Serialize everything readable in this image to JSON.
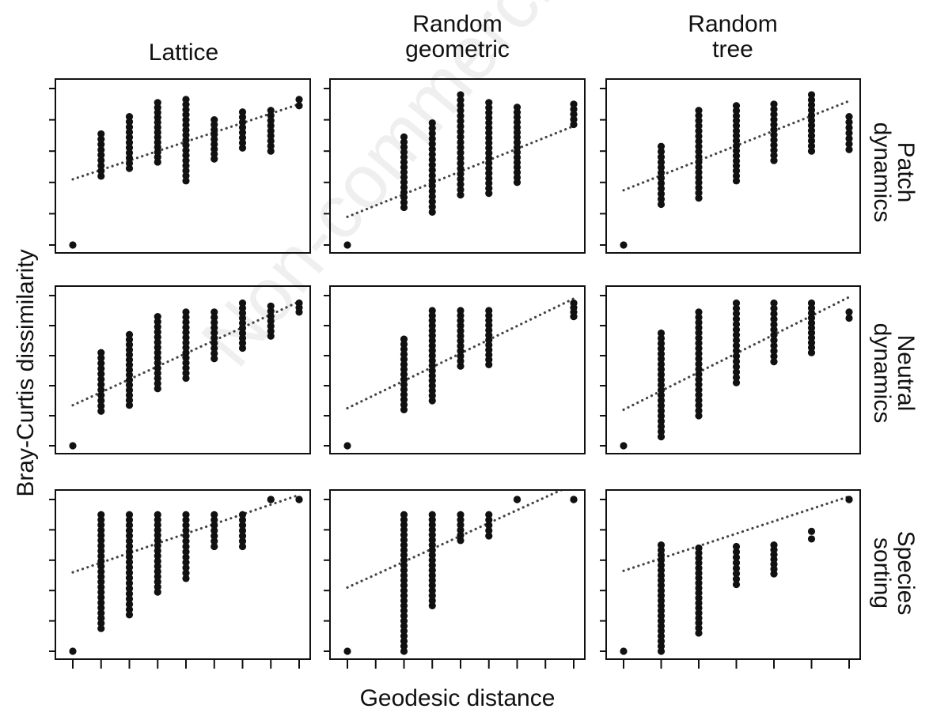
{
  "watermark": "Non-commercial use",
  "chart_data": {
    "type": "scatter",
    "xlabel": "Geodesic distance",
    "ylabel": "Bray-Curtis dissimilarity",
    "columns": [
      "Lattice",
      "Random\ngeometric",
      "Random\ntree"
    ],
    "rows": [
      "Patch\ndynamics",
      "Neutral\ndynamics",
      "Species\nsorting"
    ],
    "tick_labels_shown": false,
    "trend_line_style": "dotted",
    "panels": [
      {
        "row": "Patch dynamics",
        "column": "Lattice",
        "xlim": [
          0,
          8
        ],
        "ylim": [
          0,
          1
        ],
        "x_values": [
          1,
          2,
          3,
          4,
          5,
          6,
          7,
          8
        ],
        "point_ranges": [
          [
            0.44,
            0.71
          ],
          [
            0.49,
            0.82
          ],
          [
            0.53,
            0.91
          ],
          [
            0.41,
            0.93
          ],
          [
            0.55,
            0.8
          ],
          [
            0.62,
            0.85
          ],
          [
            0.6,
            0.86
          ],
          [
            0.89,
            0.93
          ]
        ],
        "origin_point": [
          0,
          0
        ],
        "trend": [
          [
            0,
            0.42
          ],
          [
            8,
            0.9
          ]
        ]
      },
      {
        "row": "Patch dynamics",
        "column": "Random geometric",
        "xlim": [
          0,
          8
        ],
        "ylim": [
          0,
          1
        ],
        "x_values": [
          2,
          3,
          4,
          5,
          6,
          8
        ],
        "point_ranges": [
          [
            0.24,
            0.69
          ],
          [
            0.21,
            0.78
          ],
          [
            0.32,
            0.96
          ],
          [
            0.33,
            0.91
          ],
          [
            0.4,
            0.88
          ],
          [
            0.77,
            0.9
          ]
        ],
        "origin_point": [
          0,
          0
        ],
        "trend": [
          [
            0,
            0.18
          ],
          [
            8,
            0.76
          ]
        ]
      },
      {
        "row": "Patch dynamics",
        "column": "Random tree",
        "xlim": [
          0,
          6
        ],
        "ylim": [
          0,
          1
        ],
        "x_values": [
          1,
          2,
          3,
          4,
          5,
          6
        ],
        "point_ranges": [
          [
            0.26,
            0.63
          ],
          [
            0.3,
            0.86
          ],
          [
            0.41,
            0.89
          ],
          [
            0.54,
            0.9
          ],
          [
            0.6,
            0.96
          ],
          [
            0.61,
            0.82
          ]
        ],
        "origin_point": [
          0,
          0
        ],
        "trend": [
          [
            0,
            0.35
          ],
          [
            6,
            0.92
          ]
        ]
      },
      {
        "row": "Neutral dynamics",
        "column": "Lattice",
        "xlim": [
          0,
          8
        ],
        "ylim": [
          0,
          1
        ],
        "x_values": [
          1,
          2,
          3,
          4,
          5,
          6,
          7,
          8
        ],
        "point_ranges": [
          [
            0.23,
            0.62
          ],
          [
            0.27,
            0.74
          ],
          [
            0.38,
            0.86
          ],
          [
            0.45,
            0.89
          ],
          [
            0.58,
            0.89
          ],
          [
            0.65,
            0.95
          ],
          [
            0.73,
            0.93
          ],
          [
            0.89,
            0.95
          ]
        ],
        "origin_point": [
          0,
          0
        ],
        "trend": [
          [
            0,
            0.27
          ],
          [
            8,
            0.96
          ]
        ]
      },
      {
        "row": "Neutral dynamics",
        "column": "Random geometric",
        "xlim": [
          0,
          8
        ],
        "ylim": [
          0,
          1
        ],
        "x_values": [
          2,
          3,
          4,
          5,
          8
        ],
        "point_ranges": [
          [
            0.24,
            0.71
          ],
          [
            0.3,
            0.9
          ],
          [
            0.53,
            0.9
          ],
          [
            0.54,
            0.9
          ],
          [
            0.86,
            0.95
          ]
        ],
        "origin_point": [
          0,
          0
        ],
        "trend": [
          [
            0,
            0.25
          ],
          [
            8,
            0.98
          ]
        ]
      },
      {
        "row": "Neutral dynamics",
        "column": "Random tree",
        "xlim": [
          0,
          6
        ],
        "ylim": [
          0,
          1
        ],
        "x_values": [
          1,
          2,
          3,
          4,
          5,
          6
        ],
        "point_ranges": [
          [
            0.06,
            0.75
          ],
          [
            0.2,
            0.89
          ],
          [
            0.42,
            0.95
          ],
          [
            0.56,
            0.95
          ],
          [
            0.62,
            0.95
          ],
          [
            0.85,
            0.89
          ]
        ],
        "origin_point": [
          0,
          0
        ],
        "trend": [
          [
            0,
            0.24
          ],
          [
            6,
            0.99
          ]
        ]
      },
      {
        "row": "Species sorting",
        "column": "Lattice",
        "xlim": [
          0,
          8
        ],
        "ylim": [
          0,
          1
        ],
        "x_values": [
          1,
          2,
          3,
          4,
          5,
          6,
          7,
          8
        ],
        "point_ranges": [
          [
            0.15,
            0.9
          ],
          [
            0.24,
            0.9
          ],
          [
            0.39,
            0.9
          ],
          [
            0.48,
            0.9
          ],
          [
            0.69,
            0.9
          ],
          [
            0.69,
            0.9
          ],
          [
            1.0,
            1.0
          ],
          [
            1.0,
            1.0
          ]
        ],
        "origin_point": [
          0,
          0
        ],
        "trend": [
          [
            0,
            0.52
          ],
          [
            8,
            1.03
          ]
        ]
      },
      {
        "row": "Species sorting",
        "column": "Random geometric",
        "xlim": [
          0,
          8
        ],
        "ylim": [
          0,
          1
        ],
        "x_values": [
          2,
          3,
          4,
          5,
          6,
          8
        ],
        "point_ranges": [
          [
            0.0,
            0.9
          ],
          [
            0.3,
            0.9
          ],
          [
            0.73,
            0.9
          ],
          [
            0.76,
            0.9
          ],
          [
            1.0,
            1.0
          ],
          [
            1.0,
            1.0
          ]
        ],
        "origin_point": [
          0,
          0
        ],
        "trend": [
          [
            0,
            0.42
          ],
          [
            8,
            1.1
          ]
        ]
      },
      {
        "row": "Species sorting",
        "column": "Random tree",
        "xlim": [
          0,
          6
        ],
        "ylim": [
          0,
          1
        ],
        "x_values": [
          1,
          2,
          3,
          4,
          5,
          6
        ],
        "point_ranges": [
          [
            0.0,
            0.7
          ],
          [
            0.12,
            0.68
          ],
          [
            0.44,
            0.69
          ],
          [
            0.51,
            0.7
          ],
          [
            0.74,
            0.79
          ],
          [
            1.0,
            1.0
          ]
        ],
        "origin_point": [
          0,
          0
        ],
        "trend": [
          [
            0,
            0.53
          ],
          [
            6,
            1.02
          ]
        ]
      }
    ]
  }
}
